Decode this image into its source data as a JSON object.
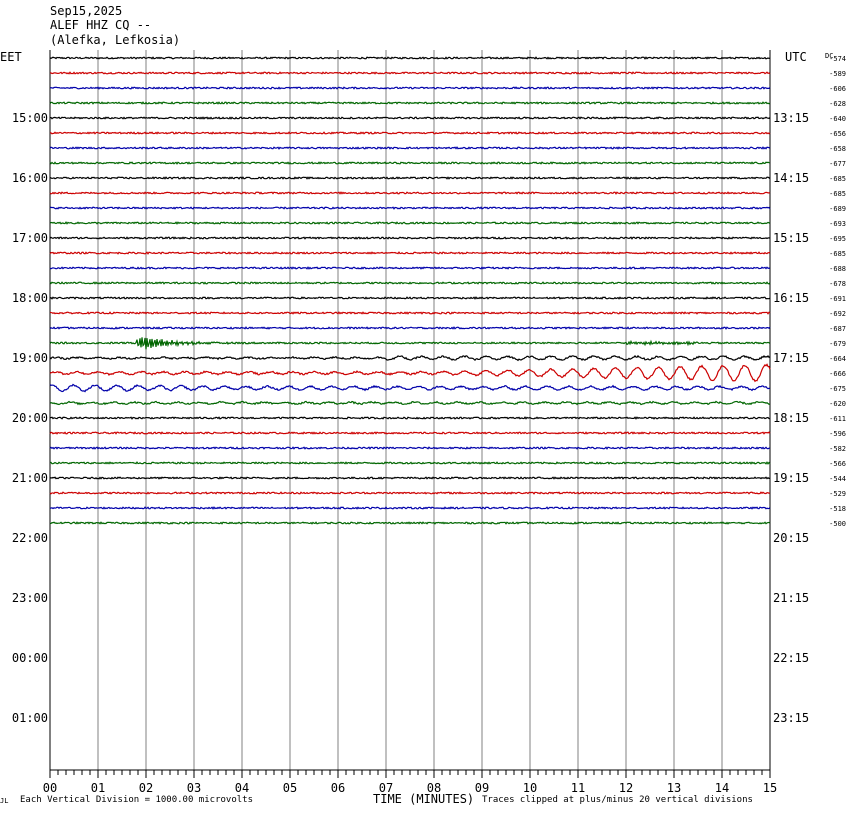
{
  "header": {
    "date": "Sep15,2025",
    "station": "ALEF HHZ CQ --",
    "location": "(Alefka, Lefkosia)"
  },
  "chart_data": {
    "type": "line",
    "left_axis_label": "EET",
    "right_axis_label": "UTC",
    "dc_label": "DC",
    "left_hour_labels": [
      "15:00",
      "16:00",
      "17:00",
      "18:00",
      "19:00",
      "20:00",
      "21:00",
      "22:00",
      "23:00",
      "00:00",
      "01:00"
    ],
    "right_hour_labels": [
      "13:15",
      "14:15",
      "15:15",
      "16:15",
      "17:15",
      "18:15",
      "19:15",
      "20:15",
      "21:15",
      "22:15",
      "23:15"
    ],
    "x_tick_labels": [
      "00",
      "01",
      "02",
      "03",
      "04",
      "05",
      "06",
      "07",
      "08",
      "09",
      "10",
      "11",
      "12",
      "13",
      "14",
      "15"
    ],
    "xlim": [
      0,
      15
    ],
    "xlabel": "TIME (MINUTES)",
    "scale_note": "Each Vertical Division = 1000.00 microvolts",
    "clip_note": "Traces clipped at plus/minus 20 vertical divisions",
    "corner_mark": "JL",
    "trace_colors": [
      "#000000",
      "#cc0000",
      "#0000aa",
      "#006600"
    ],
    "dc_offsets": [
      "-574",
      "-589",
      "-606",
      "-628",
      "-640",
      "-656",
      "-658",
      "-677",
      "-685",
      "-685",
      "-689",
      "-693",
      "-695",
      "-685",
      "-688",
      "-678",
      "-691",
      "-692",
      "-687",
      "-679",
      "-664",
      "-666",
      "-675",
      "-620",
      "-611",
      "-596",
      "-582",
      "-566",
      "-544",
      "-529",
      "-518",
      "-500"
    ],
    "grid": true,
    "events": [
      {
        "trace": 19,
        "start_min": 1.8,
        "note": "local event"
      },
      {
        "trace": 21,
        "start_min": 8.5,
        "note": "surface waves"
      },
      {
        "trace": 22,
        "start_min": 0.0,
        "note": "surface waves"
      }
    ]
  }
}
